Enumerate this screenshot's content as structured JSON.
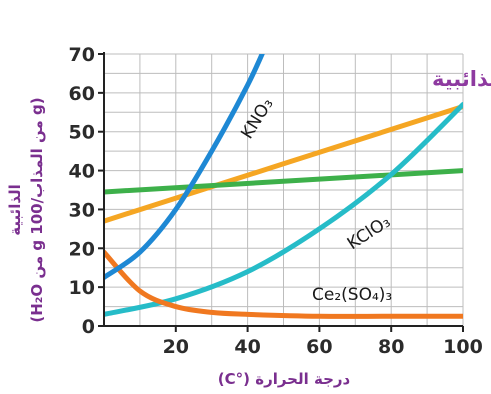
{
  "chart_data": {
    "type": "line",
    "title": "الذائبية",
    "xlabel": "درجة الحرارة (°C)",
    "ylabel_line1": "الذائبية",
    "ylabel_line2": "(g من المذاب/g 100 من H₂O)",
    "xlim": [
      0,
      100
    ],
    "ylim": [
      0,
      70
    ],
    "x_ticks": [
      20,
      40,
      60,
      80,
      100
    ],
    "y_ticks": [
      0,
      10,
      20,
      30,
      40,
      50,
      60,
      70
    ],
    "grid": true,
    "series": [
      {
        "name": "KNO₃",
        "color": "#1e88d4",
        "x": [
          0,
          10,
          20,
          30,
          40,
          45
        ],
        "y": [
          12.5,
          19,
          30,
          45,
          62,
          72
        ]
      },
      {
        "name": "KClO₃",
        "color": "#26bcc8",
        "x": [
          0,
          20,
          40,
          60,
          80,
          100
        ],
        "y": [
          3,
          7,
          14,
          25,
          39,
          57
        ]
      },
      {
        "name": "Ce₂(SO₄)₃",
        "color": "#f07820",
        "x": [
          0,
          10,
          20,
          30,
          40,
          60,
          80,
          100
        ],
        "y": [
          19,
          9,
          5,
          3.5,
          3,
          2.5,
          2.5,
          2.5
        ]
      },
      {
        "name": "",
        "color": "#f5a623",
        "x": [
          0,
          100
        ],
        "y": [
          27,
          56.5
        ]
      },
      {
        "name": "",
        "color": "#3db04a",
        "x": [
          0,
          100
        ],
        "y": [
          34.5,
          40
        ]
      }
    ]
  }
}
